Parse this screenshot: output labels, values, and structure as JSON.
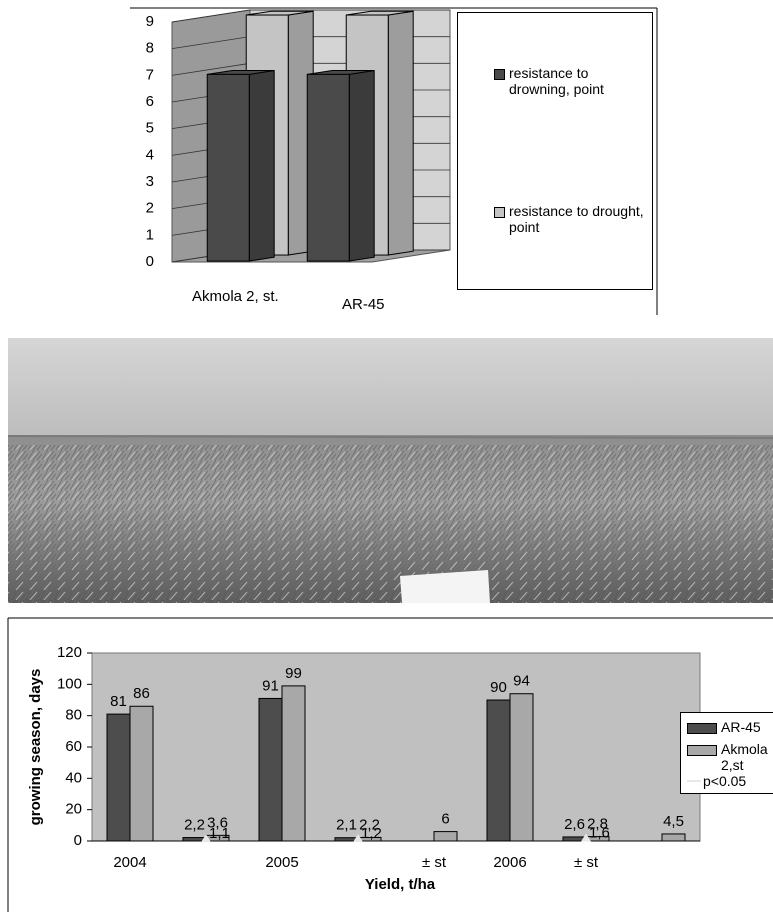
{
  "chart_data": [
    {
      "type": "bar3d",
      "categories": [
        "Akmola 2, st.",
        "AR-45"
      ],
      "series": [
        {
          "name": "resistance to drowning, point",
          "color": "#4a4a4a",
          "values": [
            7,
            7
          ]
        },
        {
          "name": "resistance to drought, point",
          "color": "#c4c4c4",
          "values": [
            9,
            9
          ]
        }
      ],
      "ylim": [
        0,
        9
      ],
      "yticks": [
        0,
        1,
        2,
        3,
        4,
        5,
        6,
        7,
        8,
        9
      ],
      "grid": true,
      "legend": "right"
    },
    {
      "type": "bar",
      "xlabel": "Yield, t/ha",
      "ylabel": "growing season, days",
      "categories": [
        "2004",
        null,
        "2005",
        null,
        "± st",
        "2006",
        "± st",
        null
      ],
      "series": [
        {
          "name": "AR-45",
          "color": "#4d4d4d",
          "values": [
            81,
            2.2,
            91,
            2.1,
            null,
            90,
            2.6,
            null
          ],
          "value_labels": [
            "81",
            "2,2",
            "91",
            "2,1",
            null,
            "90",
            "2,6",
            null
          ]
        },
        {
          "name": "Akmola 2,st",
          "color": "#a8a8a8",
          "values": [
            86,
            3.6,
            99,
            2.2,
            6,
            94,
            2.8,
            4.5
          ],
          "value_labels": [
            "86",
            "3,6",
            "99",
            "2,2",
            "6",
            "94",
            "2,8",
            "4,5"
          ]
        },
        {
          "name": "p<0.05",
          "type": "line",
          "marker": "triangle",
          "color": "#e8e8e8",
          "values": [
            null,
            1.1,
            null,
            1.2,
            null,
            null,
            1.6,
            null
          ],
          "value_labels": [
            null,
            "1,1",
            null,
            "1,2",
            null,
            null,
            "1,6",
            null
          ]
        }
      ],
      "ylim": [
        0,
        120
      ],
      "yticks": [
        0,
        20,
        40,
        60,
        80,
        100,
        120
      ],
      "grid": false,
      "legend": "right",
      "background": "#c0c0c0"
    }
  ]
}
